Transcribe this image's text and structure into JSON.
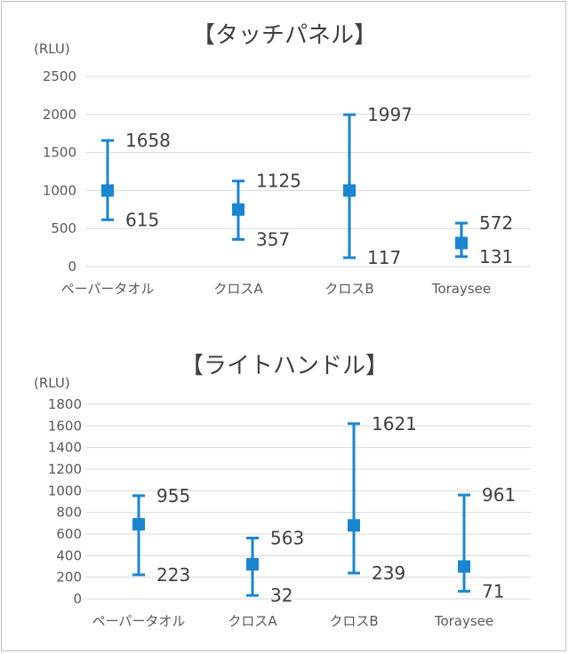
{
  "colors": {
    "series": "#1a86d0",
    "grid": "#d9d9d9",
    "text": "#404040"
  },
  "chart_data": [
    {
      "type": "scatter",
      "title": "【タッチパネル】",
      "ylabel": "(RLU)",
      "ylim": [
        0,
        2500
      ],
      "yticks": [
        0,
        500,
        1000,
        1500,
        2000,
        2500
      ],
      "categories": [
        "ペーパータオル",
        "クロスA",
        "クロスB",
        "Toraysee"
      ],
      "mean": [
        1000,
        750,
        1000,
        310
      ],
      "high": [
        1658,
        1125,
        1997,
        572
      ],
      "low": [
        615,
        357,
        117,
        131
      ],
      "grid": true,
      "legend": "none"
    },
    {
      "type": "scatter",
      "title": "【ライトハンドル】",
      "ylabel": "(RLU)",
      "ylim": [
        0,
        1800
      ],
      "yticks": [
        0,
        200,
        400,
        600,
        800,
        1000,
        1200,
        1400,
        1600,
        1800
      ],
      "categories": [
        "ペーパータオル",
        "クロスA",
        "クロスB",
        "Toraysee"
      ],
      "mean": [
        690,
        320,
        680,
        300
      ],
      "high": [
        955,
        563,
        1621,
        961
      ],
      "low": [
        223,
        32,
        239,
        71
      ],
      "grid": true,
      "legend": "none"
    }
  ]
}
